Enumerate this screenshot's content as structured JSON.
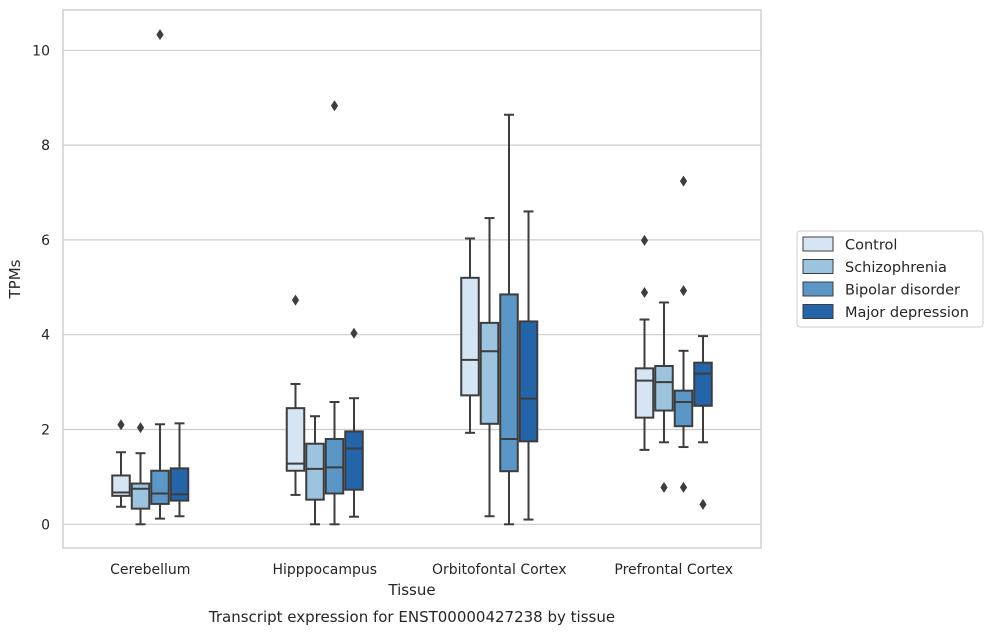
{
  "chart_data": {
    "type": "box",
    "title": "Transcript expression for ENST00000427238 by tissue",
    "xlabel": "Tissue",
    "ylabel": "TPMs",
    "ylim": [
      -0.5,
      10.85
    ],
    "yticks": [
      0,
      2,
      4,
      6,
      8,
      10
    ],
    "grid": "horizontal",
    "legend_position": "right",
    "categories": [
      "Cerebellum",
      "Hipppocampus",
      "Orbitofontal Cortex",
      "Prefrontal Cortex"
    ],
    "series": [
      {
        "name": "Control",
        "color": "#d6e5f3",
        "boxes": [
          {
            "whislo": 0.37,
            "q1": 0.6,
            "med": 0.67,
            "q3": 1.03,
            "whishi": 1.52,
            "fliers": [
              2.1
            ]
          },
          {
            "whislo": 0.62,
            "q1": 1.13,
            "med": 1.28,
            "q3": 2.45,
            "whishi": 2.96,
            "fliers": [
              4.73
            ]
          },
          {
            "whislo": 1.93,
            "q1": 2.72,
            "med": 3.47,
            "q3": 5.2,
            "whishi": 6.03,
            "fliers": []
          },
          {
            "whislo": 1.57,
            "q1": 2.25,
            "med": 3.03,
            "q3": 3.29,
            "whishi": 4.32,
            "fliers": [
              4.89,
              5.99
            ]
          }
        ]
      },
      {
        "name": "Schizophrenia",
        "color": "#9cc4df",
        "boxes": [
          {
            "whislo": 0.0,
            "q1": 0.33,
            "med": 0.75,
            "q3": 0.86,
            "whishi": 1.5,
            "fliers": [
              2.04
            ]
          },
          {
            "whislo": 0.0,
            "q1": 0.52,
            "med": 1.17,
            "q3": 1.7,
            "whishi": 2.28,
            "fliers": []
          },
          {
            "whislo": 0.17,
            "q1": 2.12,
            "med": 3.65,
            "q3": 4.25,
            "whishi": 6.46,
            "fliers": []
          },
          {
            "whislo": 1.73,
            "q1": 2.4,
            "med": 3.0,
            "q3": 3.34,
            "whishi": 4.68,
            "fliers": [
              0.78
            ]
          }
        ]
      },
      {
        "name": "Bipolar disorder",
        "color": "#5a97c6",
        "boxes": [
          {
            "whislo": 0.12,
            "q1": 0.43,
            "med": 0.65,
            "q3": 1.13,
            "whishi": 2.11,
            "fliers": [
              10.33
            ]
          },
          {
            "whislo": 0.0,
            "q1": 0.65,
            "med": 1.2,
            "q3": 1.8,
            "whishi": 2.58,
            "fliers": [
              8.83
            ]
          },
          {
            "whislo": 0.0,
            "q1": 1.12,
            "med": 1.8,
            "q3": 4.85,
            "whishi": 8.64,
            "fliers": []
          },
          {
            "whislo": 1.63,
            "q1": 2.07,
            "med": 2.58,
            "q3": 2.82,
            "whishi": 3.66,
            "fliers": [
              0.78,
              4.93,
              7.24
            ]
          }
        ]
      },
      {
        "name": "Major depression",
        "color": "#2464a8",
        "boxes": [
          {
            "whislo": 0.17,
            "q1": 0.5,
            "med": 0.63,
            "q3": 1.18,
            "whishi": 2.13,
            "fliers": []
          },
          {
            "whislo": 0.16,
            "q1": 0.73,
            "med": 1.6,
            "q3": 1.96,
            "whishi": 2.66,
            "fliers": [
              4.03
            ]
          },
          {
            "whislo": 0.1,
            "q1": 1.75,
            "med": 2.65,
            "q3": 4.28,
            "whishi": 6.6,
            "fliers": []
          },
          {
            "whislo": 1.73,
            "q1": 2.5,
            "med": 3.18,
            "q3": 3.41,
            "whishi": 3.97,
            "fliers": [
              0.42
            ]
          }
        ]
      }
    ]
  }
}
